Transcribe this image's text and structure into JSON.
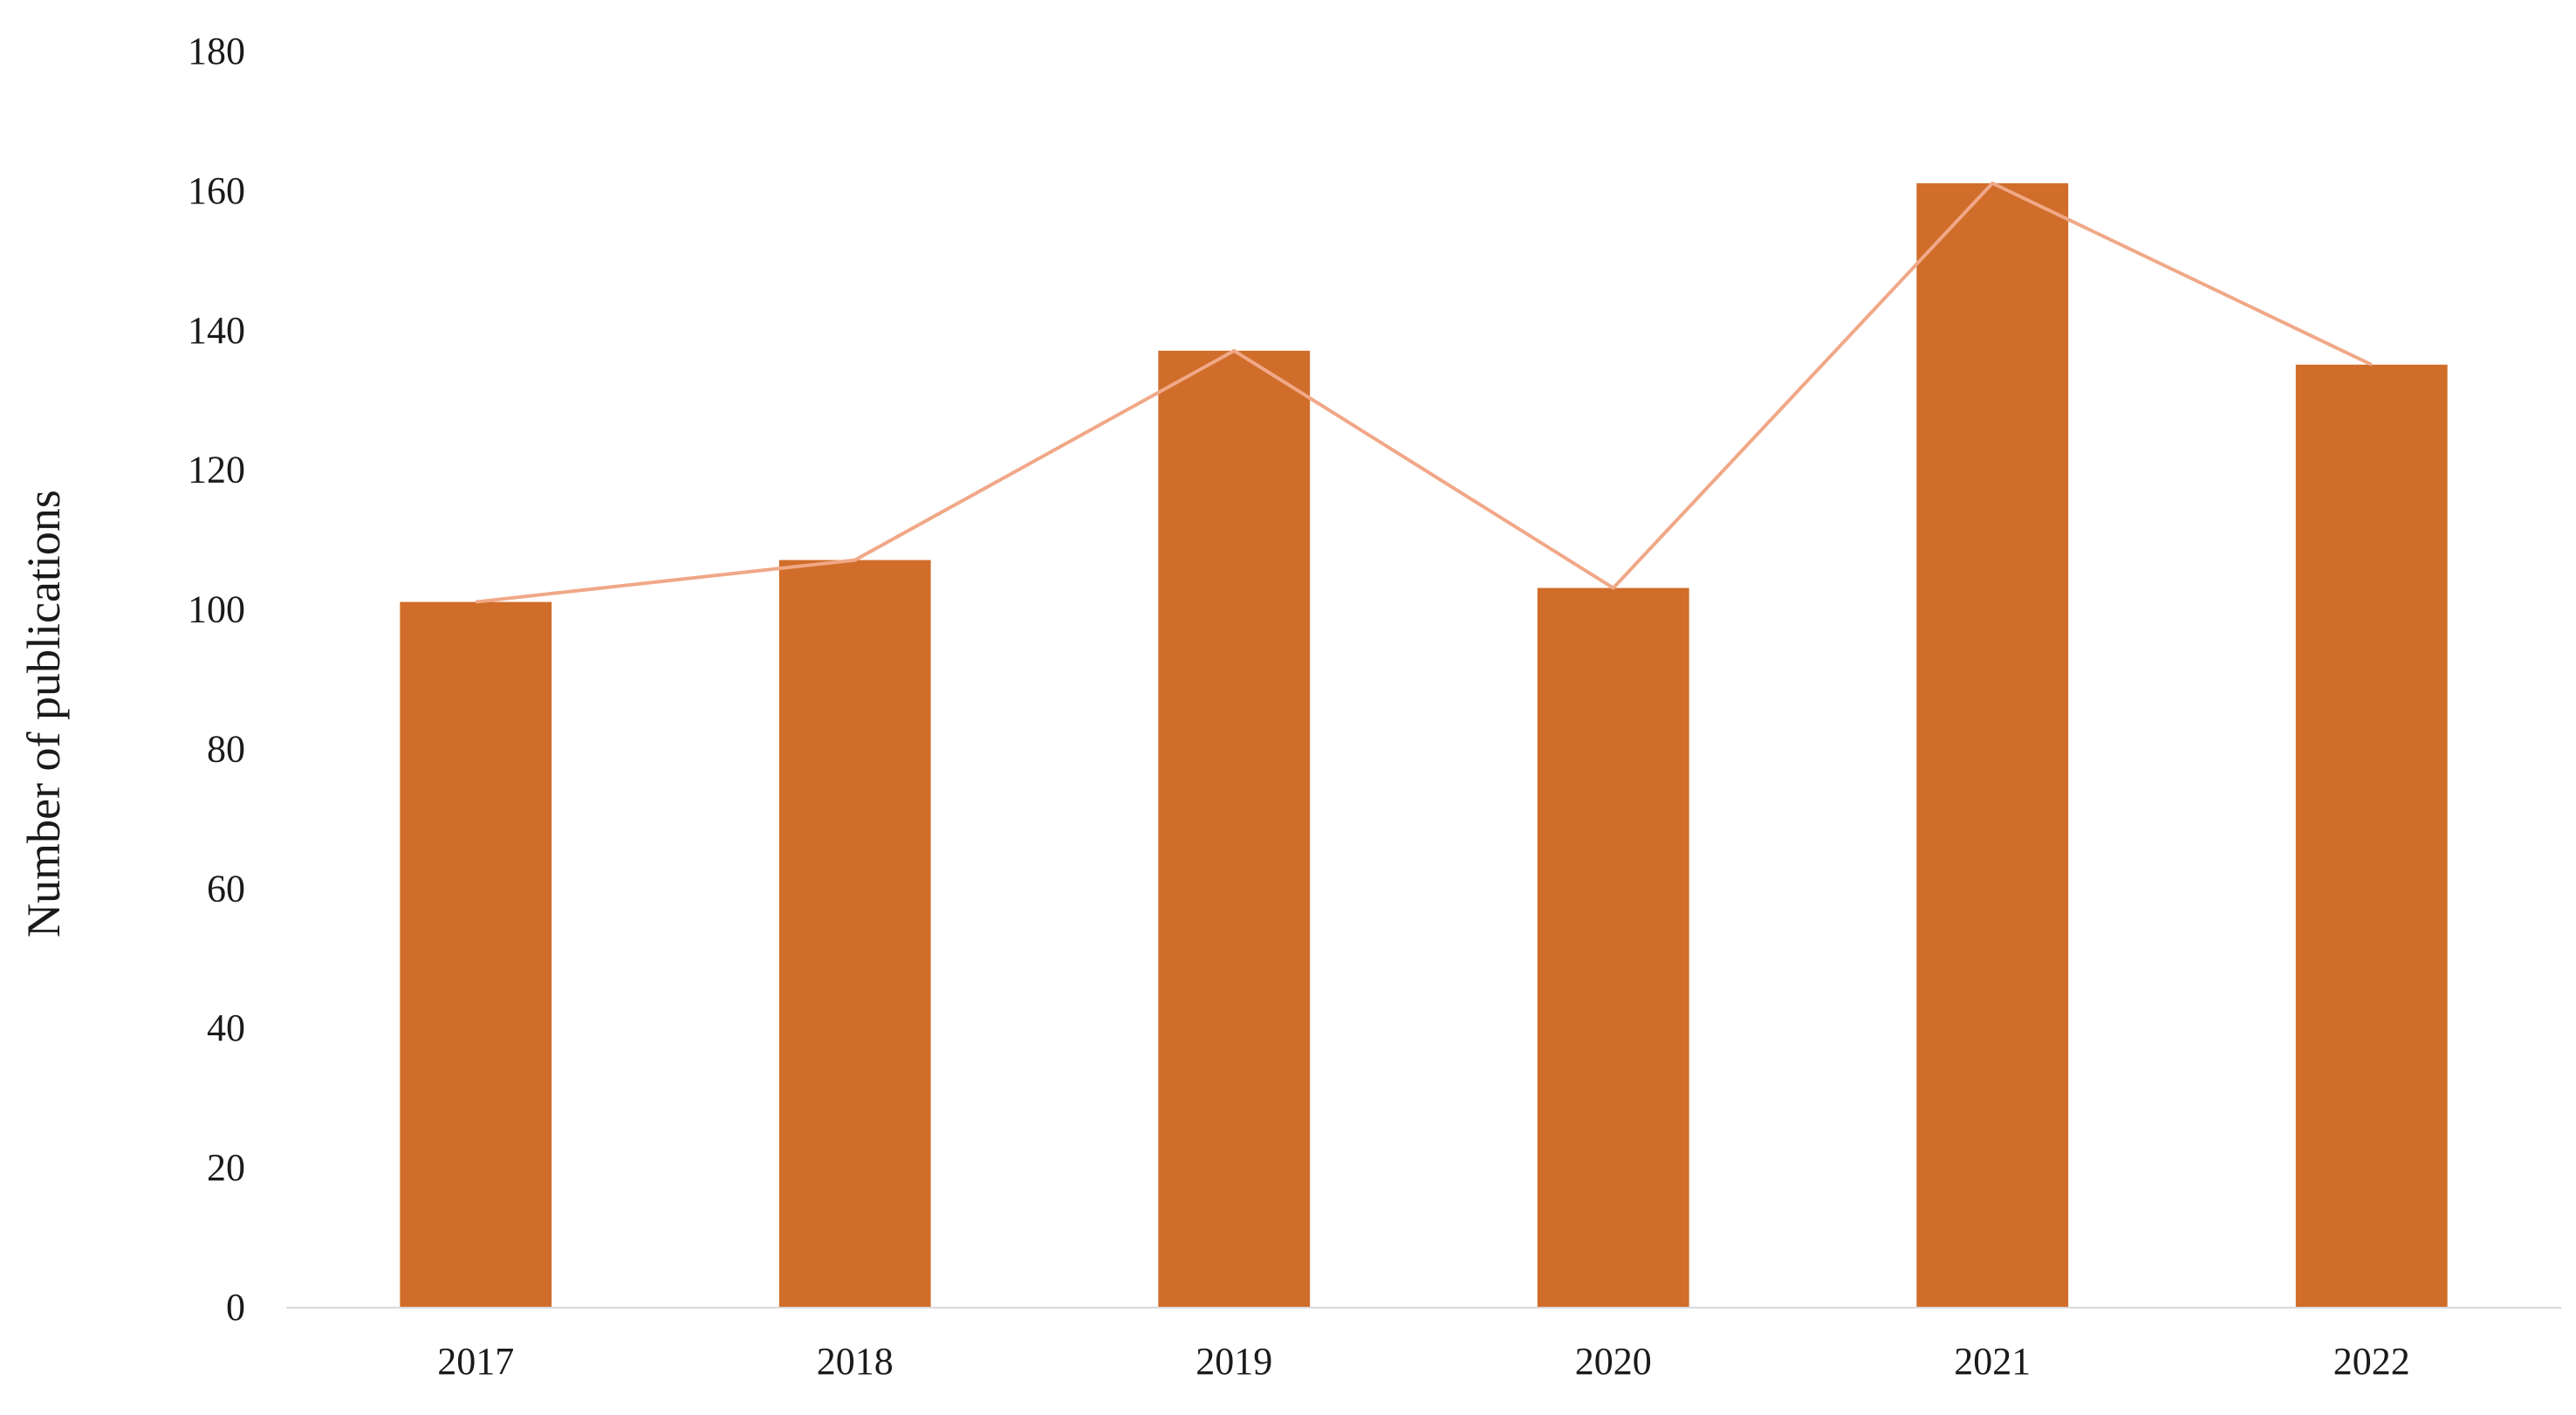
{
  "chart_data": {
    "type": "bar",
    "categories": [
      "2017",
      "2018",
      "2019",
      "2020",
      "2021",
      "2022"
    ],
    "series": [
      {
        "type": "bar",
        "values": [
          101,
          107,
          137,
          103,
          161,
          135
        ],
        "color": "#D06D2A"
      },
      {
        "type": "line",
        "values": [
          101,
          107,
          137,
          103,
          161,
          135
        ],
        "color": "#F0A887"
      }
    ],
    "title": "",
    "xlabel": "",
    "ylabel": "Number of publications",
    "ylim": [
      0,
      180
    ],
    "yticks": [
      "0",
      "20",
      "40",
      "60",
      "80",
      "100",
      "120",
      "140",
      "160",
      "180"
    ],
    "grid": false,
    "legend": "none",
    "colors": {
      "bar": "#D06D2A",
      "line": "#F0A887",
      "axis": "#d9d9d9"
    }
  }
}
